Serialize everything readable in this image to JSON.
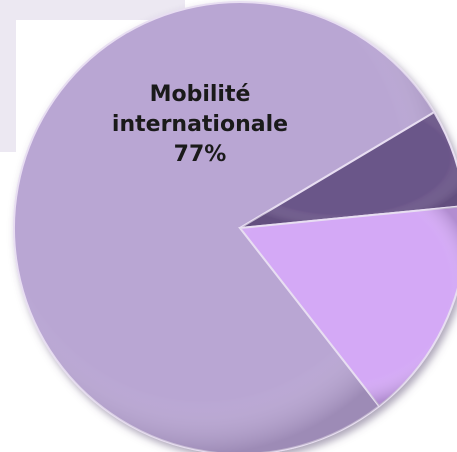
{
  "chart_data": {
    "type": "pie",
    "categories": [
      "Mobilité internationale",
      null,
      null
    ],
    "values": [
      77,
      7,
      16
    ],
    "value_labels": [
      "77%",
      null,
      null
    ],
    "colors": [
      "#b9a6d3",
      "#6b5689",
      "#d4a9f6"
    ]
  }
}
